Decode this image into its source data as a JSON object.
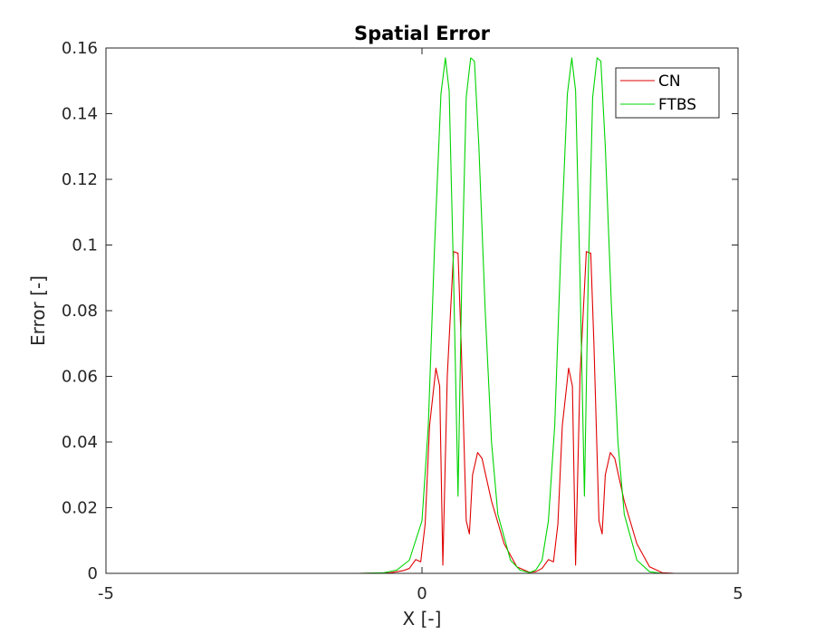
{
  "chart_data": {
    "type": "line",
    "title": "Spatial Error",
    "xlabel": "X [-]",
    "ylabel": "Error [-]",
    "xlim": [
      -5,
      5
    ],
    "ylim": [
      0,
      0.16
    ],
    "xticks": [
      "-5",
      "0",
      "5"
    ],
    "yticks": [
      "0",
      "0.02",
      "0.04",
      "0.06",
      "0.08",
      "0.1",
      "0.12",
      "0.14",
      "0.16"
    ],
    "grid": false,
    "legend_position": "top-right",
    "series": [
      {
        "name": "CN",
        "color": "#e00000",
        "points": [
          [
            -5,
            0
          ],
          [
            -1,
            0
          ],
          [
            -0.5,
            0.0002
          ],
          [
            -0.3,
            0.0008
          ],
          [
            -0.2,
            0.0015
          ],
          [
            -0.1,
            0.0042
          ],
          [
            -0.02,
            0.0035
          ],
          [
            0.05,
            0.015
          ],
          [
            0.12,
            0.045
          ],
          [
            0.22,
            0.0625
          ],
          [
            0.28,
            0.057
          ],
          [
            0.33,
            0.0025
          ],
          [
            0.4,
            0.06
          ],
          [
            0.5,
            0.098
          ],
          [
            0.57,
            0.0975
          ],
          [
            0.62,
            0.07
          ],
          [
            0.7,
            0.016
          ],
          [
            0.75,
            0.012
          ],
          [
            0.8,
            0.03
          ],
          [
            0.88,
            0.0368
          ],
          [
            0.95,
            0.035
          ],
          [
            1.1,
            0.022
          ],
          [
            1.3,
            0.009
          ],
          [
            1.5,
            0.002
          ],
          [
            1.7,
            0.0003
          ],
          [
            1.8,
            0.0005
          ],
          [
            1.9,
            0.0015
          ],
          [
            2.0,
            0.0042
          ],
          [
            2.08,
            0.0035
          ],
          [
            2.15,
            0.015
          ],
          [
            2.22,
            0.045
          ],
          [
            2.32,
            0.0625
          ],
          [
            2.38,
            0.057
          ],
          [
            2.43,
            0.0025
          ],
          [
            2.5,
            0.06
          ],
          [
            2.6,
            0.098
          ],
          [
            2.67,
            0.0975
          ],
          [
            2.72,
            0.07
          ],
          [
            2.8,
            0.016
          ],
          [
            2.85,
            0.012
          ],
          [
            2.9,
            0.03
          ],
          [
            2.98,
            0.0368
          ],
          [
            3.05,
            0.035
          ],
          [
            3.2,
            0.022
          ],
          [
            3.4,
            0.009
          ],
          [
            3.6,
            0.002
          ],
          [
            3.8,
            0.0002
          ],
          [
            4.0,
            0
          ],
          [
            5,
            0
          ]
        ]
      },
      {
        "name": "FTBS",
        "color": "#00d400",
        "points": [
          [
            -5,
            0
          ],
          [
            -1,
            0
          ],
          [
            -0.6,
            0.0002
          ],
          [
            -0.4,
            0.001
          ],
          [
            -0.2,
            0.004
          ],
          [
            0,
            0.016
          ],
          [
            0.1,
            0.045
          ],
          [
            0.2,
            0.1
          ],
          [
            0.3,
            0.146
          ],
          [
            0.37,
            0.157
          ],
          [
            0.43,
            0.147
          ],
          [
            0.5,
            0.09
          ],
          [
            0.57,
            0.0235
          ],
          [
            0.63,
            0.09
          ],
          [
            0.7,
            0.145
          ],
          [
            0.77,
            0.157
          ],
          [
            0.83,
            0.156
          ],
          [
            0.9,
            0.13
          ],
          [
            1.0,
            0.08
          ],
          [
            1.1,
            0.04
          ],
          [
            1.2,
            0.018
          ],
          [
            1.4,
            0.004
          ],
          [
            1.55,
            0.001
          ],
          [
            1.7,
            0.0002
          ],
          [
            1.8,
            0.001
          ],
          [
            1.9,
            0.004
          ],
          [
            2.0,
            0.016
          ],
          [
            2.1,
            0.045
          ],
          [
            2.2,
            0.1
          ],
          [
            2.3,
            0.146
          ],
          [
            2.37,
            0.157
          ],
          [
            2.43,
            0.147
          ],
          [
            2.5,
            0.09
          ],
          [
            2.57,
            0.0235
          ],
          [
            2.63,
            0.09
          ],
          [
            2.7,
            0.145
          ],
          [
            2.77,
            0.157
          ],
          [
            2.83,
            0.156
          ],
          [
            2.9,
            0.13
          ],
          [
            3.0,
            0.08
          ],
          [
            3.1,
            0.04
          ],
          [
            3.2,
            0.018
          ],
          [
            3.4,
            0.004
          ],
          [
            3.6,
            0.0005
          ],
          [
            3.8,
            0
          ],
          [
            5,
            0
          ]
        ]
      }
    ]
  }
}
